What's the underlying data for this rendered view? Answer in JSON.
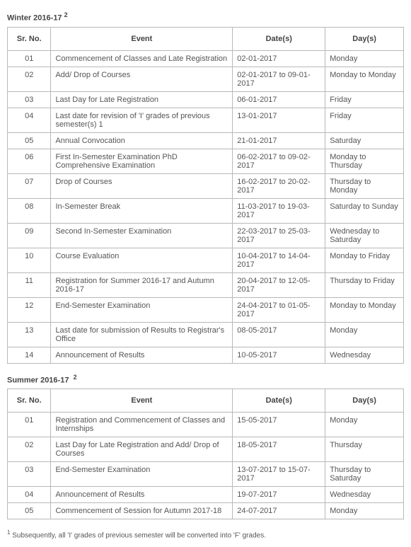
{
  "sections": [
    {
      "title_html": "Winter 2016-17 <sup>2</sup>",
      "headers": {
        "sr": "Sr. No.",
        "event": "Event",
        "dates": "Date(s)",
        "days": "Day(s)"
      },
      "rows": [
        {
          "sr": "01",
          "event": "Commencement of Classes and Late Registration",
          "dates": "02-01-2017",
          "days": "Monday"
        },
        {
          "sr": "02",
          "event": "Add/ Drop of Courses",
          "dates": "02-01-2017 to 09-01-2017",
          "days": "Monday to Monday"
        },
        {
          "sr": "03",
          "event": "Last Day for Late Registration",
          "dates": "06-01-2017",
          "days": "Friday"
        },
        {
          "sr": "04",
          "event": "Last date for revision of 'I' grades of previous semester(s) 1",
          "dates": "13-01-2017",
          "days": "Friday"
        },
        {
          "sr": "05",
          "event": "Annual Convocation",
          "dates": "21-01-2017",
          "days": "Saturday"
        },
        {
          "sr": "06",
          "event": "First In-Semester Examination PhD Comprehensive Examination",
          "dates": "06-02-2017 to 09-02-2017",
          "days": "Monday to Thursday"
        },
        {
          "sr": "07",
          "event": "Drop of Courses",
          "dates": "16-02-2017 to 20-02-2017",
          "days": "Thursday to Monday"
        },
        {
          "sr": "08",
          "event": "In-Semester Break",
          "dates": "11-03-2017 to 19-03-2017",
          "days": "Saturday to Sunday"
        },
        {
          "sr": "09",
          "event": "Second In-Semester Examination",
          "dates": "22-03-2017 to 25-03-2017",
          "days": "Wednesday to Saturday"
        },
        {
          "sr": "10",
          "event": "Course Evaluation",
          "dates": "10-04-2017 to 14-04-2017",
          "days": "Monday to Friday"
        },
        {
          "sr": "11",
          "event": "Registration for Summer 2016-17 and Autumn 2016-17",
          "dates": "20-04-2017 to 12-05-2017",
          "days": "Thursday to Friday"
        },
        {
          "sr": "12",
          "event": "End-Semester Examination",
          "dates": "24-04-2017 to 01-05-2017",
          "days": "Monday to Monday"
        },
        {
          "sr": "13",
          "event": "Last date for submission of Results to Registrar's Office",
          "dates": "08-05-2017",
          "days": "Monday"
        },
        {
          "sr": "14",
          "event": "Announcement of Results",
          "dates": "10-05-2017",
          "days": "Wednesday"
        }
      ]
    },
    {
      "title_html": "Summer 2016-17 &nbsp;<sup>2</sup>",
      "headers": {
        "sr": "Sr. No.",
        "event": "Event",
        "dates": "Date(s)",
        "days": "Day(s)"
      },
      "rows": [
        {
          "sr": "01",
          "event": "Registration and Commencement of Classes and Internships",
          "dates": "15-05-2017",
          "days": "Monday"
        },
        {
          "sr": "02",
          "event": "Last Day for Late Registration and Add/ Drop of Courses",
          "dates": "18-05-2017",
          "days": "Thursday"
        },
        {
          "sr": "03",
          "event": "End-Semester Examination",
          "dates": "13-07-2017 to 15-07-2017",
          "days": "Thursday to Saturday"
        },
        {
          "sr": "04",
          "event": "Announcement of Results",
          "dates": "19-07-2017",
          "days": "Wednesday"
        },
        {
          "sr": "05",
          "event": "Commencement of Session for Autumn 2017-18",
          "dates": "24-07-2017",
          "days": "Monday"
        }
      ]
    }
  ],
  "footnote_html": "<sup>1</sup> Subsequently, all 'I' grades of previous semester will be converted into 'F' grades."
}
